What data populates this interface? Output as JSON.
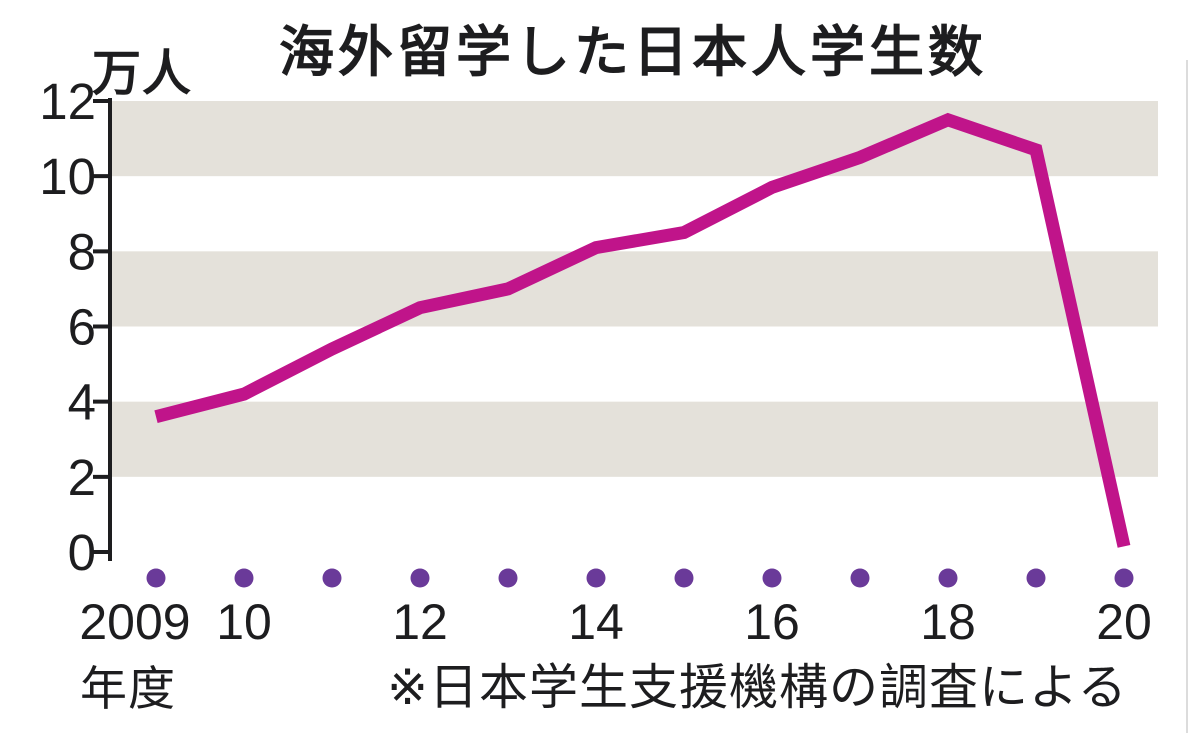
{
  "chart": {
    "title": "海外留学した日本人学生数",
    "unit_label": "万人",
    "x_axis_suffix": "年度",
    "source_note": "※日本学生支援機構の調査による"
  },
  "chart_data": {
    "type": "line",
    "title": "海外留学した日本人学生数",
    "ylabel": "万人",
    "xlabel": "年度",
    "source_note": "※日本学生支援機構の調査による",
    "x_years": [
      2009,
      2010,
      2011,
      2012,
      2013,
      2014,
      2015,
      2016,
      2017,
      2018,
      2019,
      2020
    ],
    "values": [
      3.6,
      4.2,
      5.4,
      6.5,
      7.0,
      8.1,
      8.5,
      9.7,
      10.5,
      11.5,
      10.7,
      0.15
    ],
    "x_tick_labels": [
      "2009",
      "10",
      "12",
      "14",
      "16",
      "18",
      "20"
    ],
    "x_tick_years": [
      2009,
      2010,
      2012,
      2014,
      2016,
      2018,
      2020
    ],
    "y_ticks": [
      0,
      2,
      4,
      6,
      8,
      10,
      12
    ],
    "ylim": [
      0,
      12
    ],
    "shaded_bands": [
      [
        10,
        12
      ],
      [
        6,
        8
      ],
      [
        2,
        4
      ]
    ],
    "grid": "horizontal-bands",
    "legend": "none",
    "colors": {
      "line": "#c0148a",
      "year_dot": "#6a3a99",
      "band": "#e4e1da",
      "axis": "#1d1d1f",
      "text": "#1d1d1f",
      "background": "#ffffff"
    }
  }
}
